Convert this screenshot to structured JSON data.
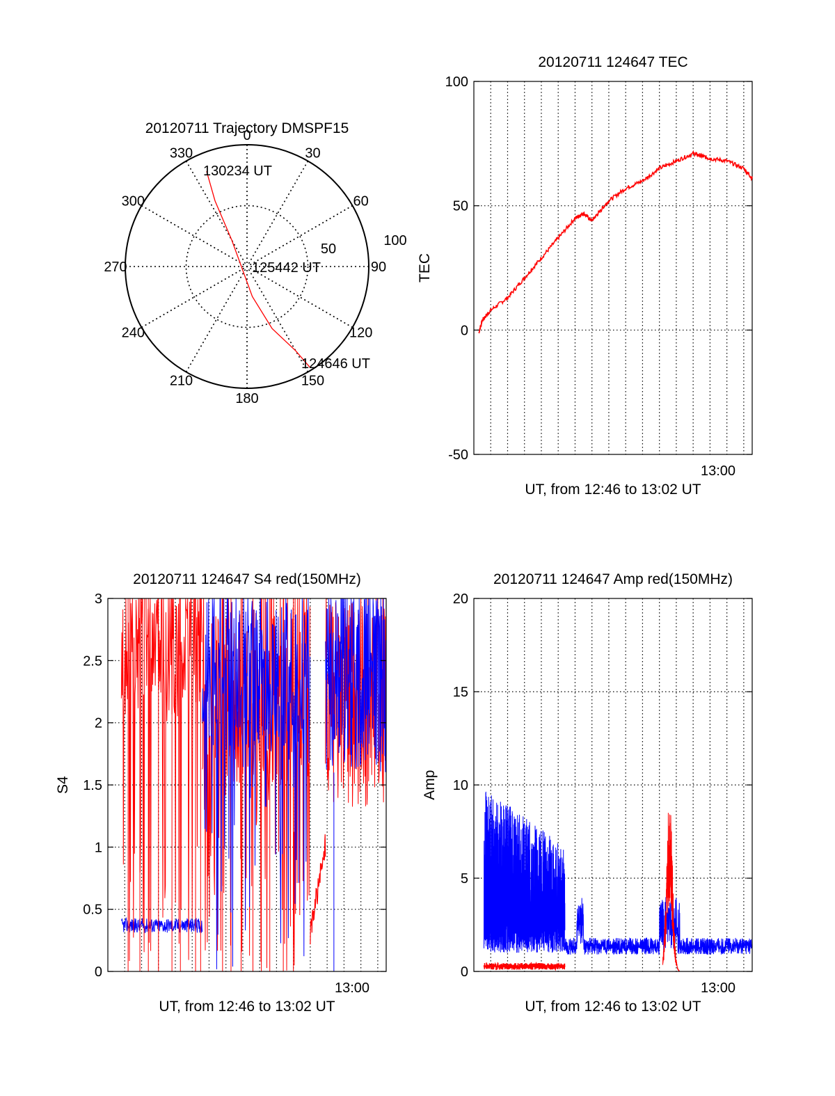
{
  "colors": {
    "red": "#ff0000",
    "blue": "#0000ff",
    "axis": "#000000"
  },
  "chart_data": [
    {
      "type": "polar",
      "title": "20120711 Trajectory DMSPF15",
      "angle_labels": [
        "0",
        "30",
        "60",
        "90",
        "120",
        "150",
        "180",
        "210",
        "240",
        "270",
        "300",
        "330"
      ],
      "radius_labels": [
        "50",
        "100"
      ],
      "elevation_range": [
        0,
        100
      ],
      "annotations": {
        "end": "130234 UT",
        "mid": "125442 UT",
        "start": "124646 UT"
      },
      "trajectory": {
        "azimuth": [
          148,
          150,
          158,
          170,
          330,
          334,
          337
        ],
        "radius": [
          98,
          80,
          55,
          25,
          25,
          60,
          85
        ]
      }
    },
    {
      "type": "line",
      "title": "20120711 124647 TEC",
      "xlabel": "UT, from 12:46 to 13:02 UT",
      "ylabel": "TEC",
      "x_tick_label": "13:00",
      "y_ticks": [
        "100",
        "50",
        "0",
        "-50"
      ],
      "ylim": [
        -50,
        100
      ],
      "xlim_min": [
        0,
        16.5
      ],
      "grid": true,
      "series": [
        {
          "color": "red",
          "x": [
            0.3,
            0.5,
            1,
            2,
            3,
            4,
            5,
            6,
            6.5,
            7,
            7.5,
            8,
            9,
            10,
            11,
            12,
            13,
            13.5,
            14,
            15,
            16,
            16.5
          ],
          "y": [
            -1,
            4,
            8,
            13,
            21,
            29,
            37,
            45,
            47,
            44,
            48,
            52,
            57,
            60,
            65,
            68,
            71,
            70,
            69,
            68,
            65,
            61
          ]
        }
      ]
    },
    {
      "type": "line",
      "title": "20120711 124647 S4 red(150MHz)",
      "xlabel": "UT, from 12:46 to 13:02 UT",
      "ylabel": "S4",
      "x_tick_label": "13:00",
      "y_ticks": [
        "3",
        "2.5",
        "2",
        "1.5",
        "1",
        "0.5",
        "0"
      ],
      "ylim": [
        0,
        3
      ],
      "xlim_min": [
        0,
        16.5
      ],
      "grid": true
    },
    {
      "type": "line",
      "title": "20120711 124647 Amp red(150MHz)",
      "xlabel": "UT, from 12:46 to 13:02 UT",
      "ylabel": "Amp",
      "x_tick_label": "13:00",
      "y_ticks": [
        "20",
        "15",
        "10",
        "5",
        "0"
      ],
      "ylim": [
        0,
        20
      ],
      "xlim_min": [
        0,
        16.5
      ],
      "grid": true
    }
  ]
}
